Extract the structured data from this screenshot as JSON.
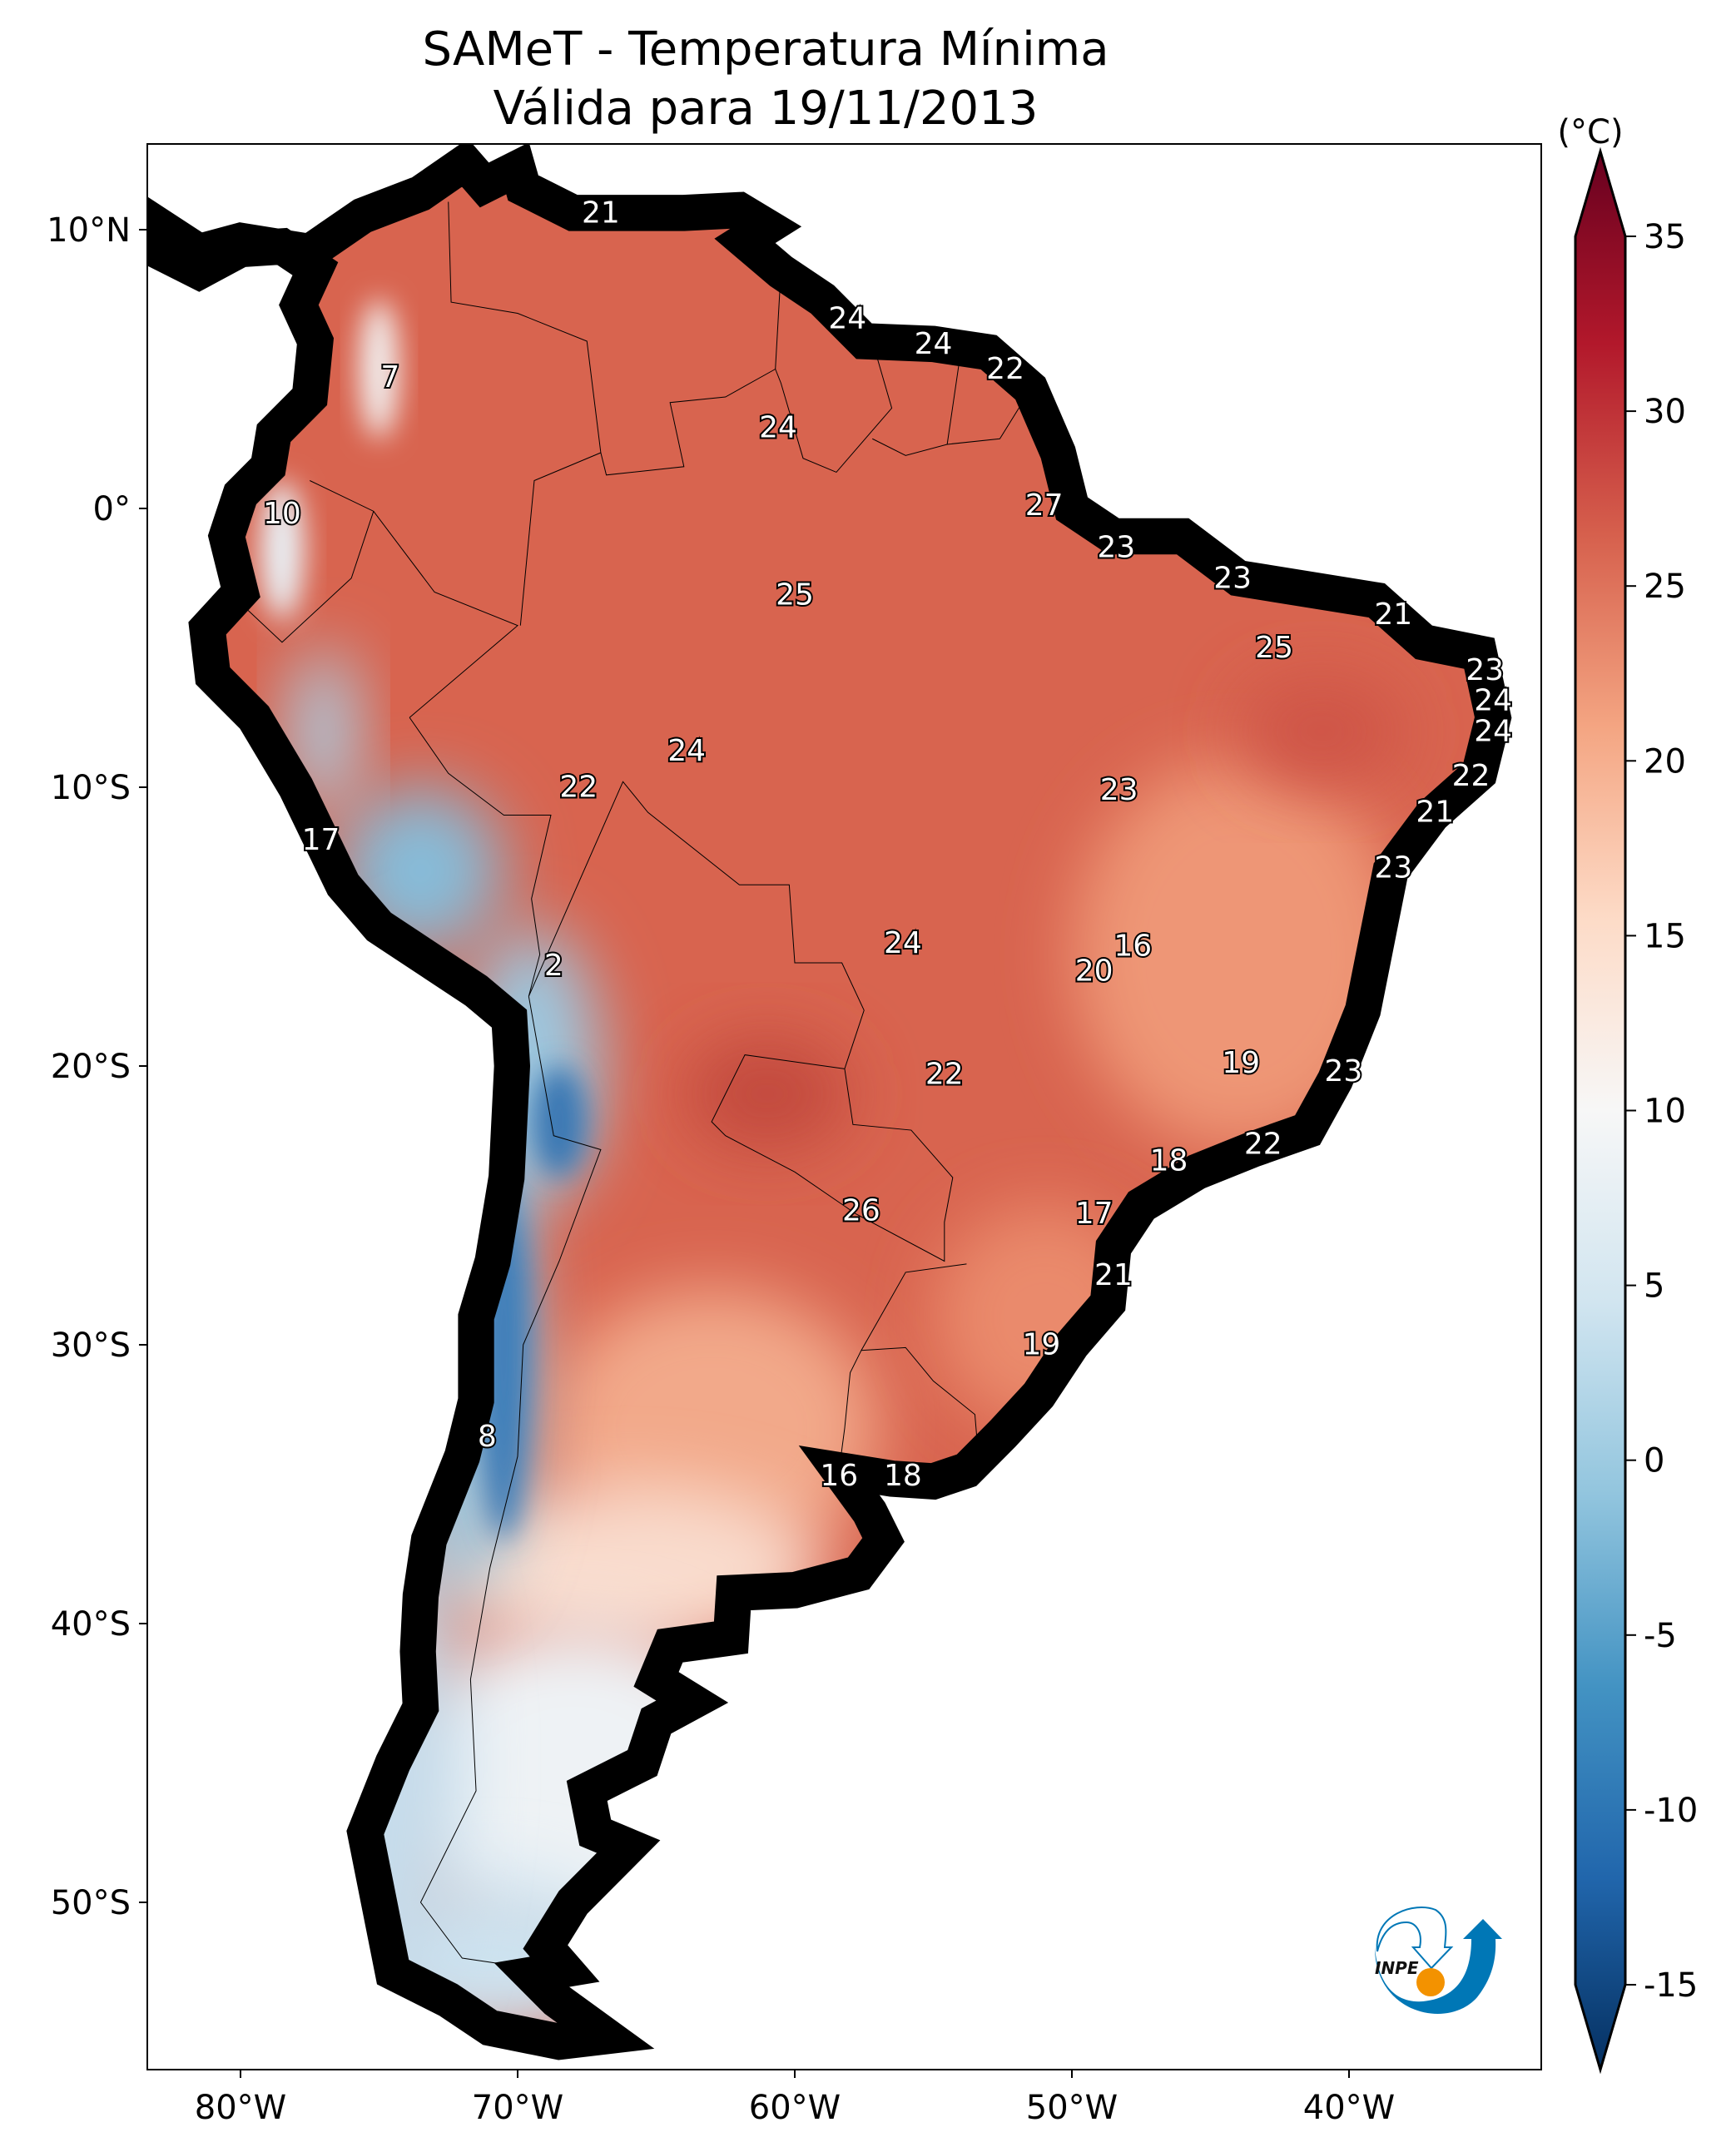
{
  "title": {
    "line1": "SAMeT - Temperatura Mínima",
    "line2": "Válida para 19/11/2013"
  },
  "colorbar": {
    "unit": "(°C)",
    "ticks": [
      "35",
      "30",
      "25",
      "20",
      "15",
      "10",
      "5",
      "0",
      "-5",
      "-10",
      "-15"
    ],
    "range": [
      -15,
      35
    ],
    "colors": [
      "#67001f",
      "#b2182b",
      "#d6604d",
      "#f4a582",
      "#fddbc7",
      "#f7f7f7",
      "#d1e5f0",
      "#92c5de",
      "#4393c3",
      "#2166ac",
      "#053061"
    ]
  },
  "axes": {
    "lon_labels": [
      "80°W",
      "70°W",
      "60°W",
      "50°W",
      "40°W"
    ],
    "lat_labels": [
      "10°N",
      "0°",
      "10°S",
      "20°S",
      "30°S",
      "40°S",
      "50°S"
    ]
  },
  "stations": [
    "21",
    "24",
    "24",
    "22",
    "7",
    "24",
    "10",
    "27",
    "23",
    "23",
    "25",
    "21",
    "25",
    "23",
    "24",
    "24",
    "24",
    "22",
    "22",
    "23",
    "21",
    "17",
    "23",
    "24",
    "16",
    "2",
    "20",
    "19",
    "23",
    "22",
    "22",
    "18",
    "26",
    "17",
    "21",
    "19",
    "8",
    "16",
    "18"
  ],
  "logo": {
    "text": "INPE",
    "blue": "#0077b6",
    "orange": "#f39200"
  }
}
